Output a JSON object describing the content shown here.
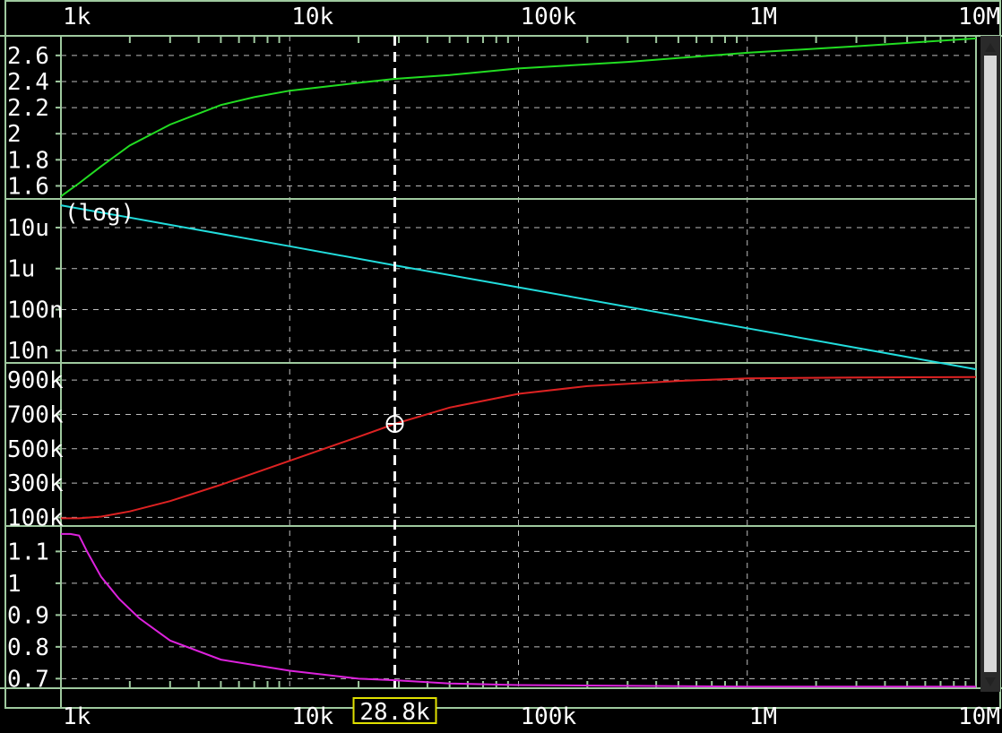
{
  "chart_data": {
    "type": "line",
    "x_scale": "log",
    "xlim": [
      1000,
      10000000
    ],
    "x_tick_labels": [
      {
        "value": 1000,
        "label": "1k"
      },
      {
        "value": 10000,
        "label": "10k"
      },
      {
        "value": 100000,
        "label": "100k"
      },
      {
        "value": 1000000,
        "label": "1M"
      },
      {
        "value": 10000000,
        "label": "10M"
      }
    ],
    "grid": true,
    "cursor": {
      "x": 28800,
      "label": "28.8k",
      "marker_panel": 2
    },
    "panels": [
      {
        "y_scale": "linear",
        "ylim": [
          1.5,
          2.75
        ],
        "y_tick_labels": [
          "2.6",
          "2.4",
          "2.2",
          "2",
          "1.8",
          "1.6"
        ],
        "y_tick_values": [
          2.6,
          2.4,
          2.2,
          2.0,
          1.8,
          1.6
        ],
        "series": [
          {
            "color": "#22dd22",
            "x": [
              1000,
              1200,
              1500,
              2000,
              3000,
              5000,
              7000,
              10000,
              20000,
              28800,
              50000,
              100000,
              300000,
              1000000,
              3000000,
              10000000
            ],
            "y": [
              1.52,
              1.62,
              1.75,
              1.91,
              2.07,
              2.22,
              2.28,
              2.33,
              2.39,
              2.42,
              2.45,
              2.5,
              2.55,
              2.62,
              2.67,
              2.73
            ]
          }
        ]
      },
      {
        "y_scale": "log",
        "ylim": [
          5e-09,
          5e-05
        ],
        "annotation": "(log)",
        "y_tick_labels": [
          "10u",
          "1u",
          "100n",
          "10n"
        ],
        "y_tick_values": [
          1e-05,
          1e-06,
          1e-07,
          1e-08
        ],
        "series": [
          {
            "color": "#22dddd",
            "x": [
              1000,
              10000,
              28800,
              100000,
              1000000,
              10000000
            ],
            "y": [
              3.5e-05,
              3.5e-06,
              1.2e-06,
              3.5e-07,
              3.5e-08,
              3.5e-09
            ]
          }
        ]
      },
      {
        "y_scale": "linear",
        "ylim": [
          50000,
          1000000
        ],
        "y_tick_labels": [
          "900k",
          "700k",
          "500k",
          "300k",
          "100k"
        ],
        "y_tick_values": [
          900000,
          700000,
          500000,
          300000,
          100000
        ],
        "series": [
          {
            "color": "#dd2222",
            "x": [
              1000,
              1200,
              1500,
              2000,
              3000,
              5000,
              10000,
              20000,
              28800,
              50000,
              100000,
              200000,
              500000,
              1000000,
              3000000,
              10000000
            ],
            "y": [
              95000,
              95000,
              105000,
              135000,
              195000,
              290000,
              430000,
              570000,
              645000,
              740000,
              820000,
              865000,
              895000,
              910000,
              915000,
              918000
            ]
          }
        ]
      },
      {
        "y_scale": "linear",
        "ylim": [
          0.67,
          1.18
        ],
        "y_tick_labels": [
          "1.1",
          "1",
          "0.9",
          "0.8",
          "0.7"
        ],
        "y_tick_values": [
          1.1,
          1.0,
          0.9,
          0.8,
          0.7
        ],
        "series": [
          {
            "color": "#dd22dd",
            "x": [
              1000,
              1100,
              1200,
              1300,
              1500,
              1800,
              2200,
              3000,
              5000,
              10000,
              20000,
              28800,
              50000,
              100000,
              1000000,
              10000000
            ],
            "y": [
              1.155,
              1.155,
              1.15,
              1.1,
              1.02,
              0.95,
              0.89,
              0.82,
              0.76,
              0.725,
              0.7,
              0.695,
              0.685,
              0.68,
              0.675,
              0.675
            ]
          }
        ]
      }
    ]
  }
}
